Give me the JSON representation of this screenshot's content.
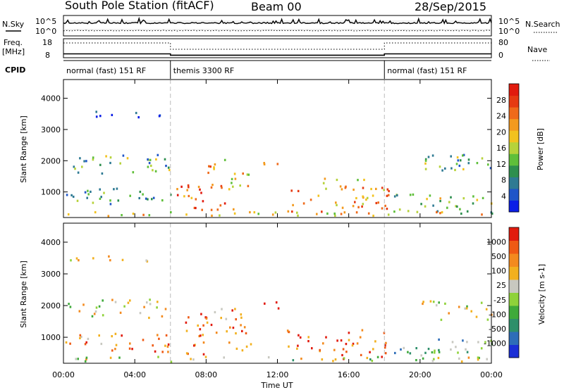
{
  "header": {
    "station": "South Pole Station (fitACF)",
    "beam": "Beam 00",
    "date": "28/Sep/2015"
  },
  "summary_panel": {
    "nsky_label": "N.Sky",
    "nsearch_label": "N.Search",
    "freq_label": "Freq.",
    "freq_unit": "[MHz]",
    "nave_label": "Nave",
    "cpid_label": "CPID",
    "top_tick_high": "10^5",
    "top_tick_low": "10^0",
    "right_tick_high": "10^5",
    "right_tick_low": "10^0",
    "freq_tick_high": "18",
    "freq_tick_low": "8",
    "nave_tick_high": "80",
    "nave_tick_low": "0"
  },
  "cpid_segments": [
    {
      "label": "normal (fast) 151 RF",
      "start_h": 0,
      "end_h": 6
    },
    {
      "label": "themis 3300 RF",
      "start_h": 6,
      "end_h": 18
    },
    {
      "label": "normal (fast) 151 RF",
      "start_h": 18,
      "end_h": 24
    }
  ],
  "chart_data": [
    {
      "type": "heatmap",
      "panel": "power",
      "ylabel": "Slant Range [km]",
      "xlabel": "Time UT",
      "x_ticks": [
        "00:00",
        "04:00",
        "08:00",
        "12:00",
        "16:00",
        "20:00",
        "00:00"
      ],
      "y_ticks": [
        1000,
        2000,
        3000,
        4000
      ],
      "xlim_hours": [
        0,
        24
      ],
      "ylim_km": [
        180,
        4600
      ],
      "colorbar": {
        "label": "Power [dB]",
        "ticks": [
          "4",
          "8",
          "12",
          "16",
          "20",
          "24",
          "28"
        ],
        "colors": [
          "#0b1ee6",
          "#1f55c8",
          "#2e7a93",
          "#2e8f4e",
          "#5fbf3a",
          "#b6d23a",
          "#f2c21e",
          "#f39a1e",
          "#ef6a1a",
          "#e63a12",
          "#e11b0e"
        ],
        "range": [
          0,
          32
        ]
      },
      "regions": [
        {
          "t0": 0.0,
          "t1": 5.9,
          "r0": 1550,
          "r1": 2150,
          "level": 0.35
        },
        {
          "t0": 0.0,
          "t1": 3.0,
          "r0": 500,
          "r1": 1100,
          "level": 0.3
        },
        {
          "t0": 3.0,
          "t1": 6.0,
          "r0": 500,
          "r1": 1000,
          "level": 0.35
        },
        {
          "t0": 6.0,
          "t1": 9.5,
          "r0": 350,
          "r1": 1200,
          "level": 0.8
        },
        {
          "t0": 8.0,
          "t1": 10.5,
          "r0": 1000,
          "r1": 2000,
          "level": 0.6
        },
        {
          "t0": 11.0,
          "t1": 12.0,
          "r0": 1800,
          "r1": 2100,
          "level": 0.55
        },
        {
          "t0": 12.5,
          "t1": 18.2,
          "r0": 250,
          "r1": 1100,
          "level": 0.7
        },
        {
          "t0": 14.5,
          "t1": 17.0,
          "r0": 1000,
          "r1": 1400,
          "level": 0.65
        },
        {
          "t0": 18.5,
          "t1": 24.0,
          "r0": 250,
          "r1": 900,
          "level": 0.45
        },
        {
          "t0": 20.0,
          "t1": 24.0,
          "r0": 1500,
          "r1": 2150,
          "level": 0.35
        },
        {
          "t0": 0.2,
          "t1": 6.0,
          "r0": 3350,
          "r1": 3550,
          "level": 0.15
        },
        {
          "t0": 0.0,
          "t1": 24.0,
          "r0": 190,
          "r1": 350,
          "level": 0.6
        }
      ]
    },
    {
      "type": "heatmap",
      "panel": "velocity",
      "ylabel": "Slant Range [km]",
      "xlabel": "Time UT",
      "x_ticks": [
        "00:00",
        "04:00",
        "08:00",
        "12:00",
        "16:00",
        "20:00",
        "00:00"
      ],
      "y_ticks": [
        1000,
        2000,
        3000,
        4000
      ],
      "xlim_hours": [
        0,
        24
      ],
      "ylim_km": [
        180,
        4600
      ],
      "colorbar": {
        "label": "Velocity [m s-1]",
        "ticks": [
          "1000",
          "500",
          "100",
          "25",
          "-25",
          "-100",
          "-500",
          "-1000"
        ],
        "colors": [
          "#1b2fd6",
          "#2e6db8",
          "#2e8f6a",
          "#3faa3a",
          "#8fd23a",
          "#c8c8c0",
          "#f2b01e",
          "#f38a1e",
          "#ef5a14",
          "#e11b0e"
        ],
        "range": [
          -1000,
          1000
        ]
      },
      "regions": [
        {
          "t0": 0.0,
          "t1": 5.9,
          "r0": 1550,
          "r1": 2150,
          "level": 0.55
        },
        {
          "t0": 0.0,
          "t1": 6.0,
          "r0": 500,
          "r1": 1100,
          "level": 0.75
        },
        {
          "t0": 6.0,
          "t1": 10.5,
          "r0": 400,
          "r1": 1900,
          "level": 0.78
        },
        {
          "t0": 10.8,
          "t1": 12.2,
          "r0": 1800,
          "r1": 2150,
          "level": 0.9
        },
        {
          "t0": 12.5,
          "t1": 18.2,
          "r0": 250,
          "r1": 1200,
          "level": 0.82
        },
        {
          "t0": 18.5,
          "t1": 24.0,
          "r0": 250,
          "r1": 900,
          "level": 0.4
        },
        {
          "t0": 20.0,
          "t1": 24.0,
          "r0": 1500,
          "r1": 2150,
          "level": 0.55
        },
        {
          "t0": 0.2,
          "t1": 6.0,
          "r0": 3350,
          "r1": 3550,
          "level": 0.55
        },
        {
          "t0": 0.0,
          "t1": 24.0,
          "r0": 190,
          "r1": 350,
          "level": 0.5
        }
      ]
    }
  ]
}
